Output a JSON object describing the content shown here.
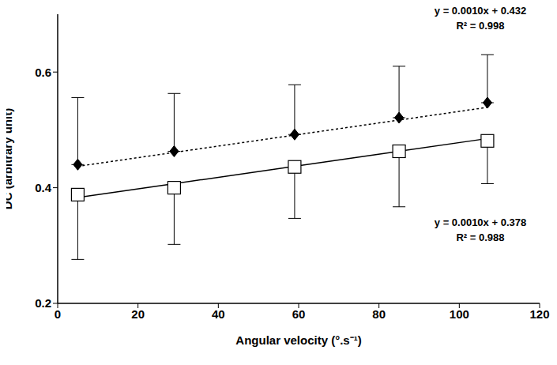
{
  "chart_data": {
    "type": "scatter",
    "x_label": "Angular velocity (°.s⁻¹)",
    "y_label": "DC (arbitrary unit)",
    "x": [
      5,
      29,
      59,
      85,
      107
    ],
    "xlim": [
      0,
      120
    ],
    "xticks": [
      0,
      20,
      40,
      60,
      80,
      100,
      120
    ],
    "ylim": [
      0.2,
      0.7
    ],
    "yticks": [
      0.2,
      0.4,
      0.6
    ],
    "grid": false,
    "series": [
      {
        "values": [
          0.44,
          0.463,
          0.492,
          0.521,
          0.547
        ],
        "error_upper": [
          0.116,
          0.1,
          0.086,
          0.089,
          0.083
        ],
        "color": "#000000",
        "marker": "diamond",
        "line_style": "dotted",
        "fit": {
          "slope": 0.001,
          "intercept": 0.432
        },
        "annotation": [
          "y = 0.0010x + 0.432",
          "R² = 0.998"
        ]
      },
      {
        "values": [
          0.388,
          0.4,
          0.436,
          0.463,
          0.481
        ],
        "error_lower": [
          0.112,
          0.098,
          0.089,
          0.096,
          0.074
        ],
        "color": "#000000",
        "marker": "square",
        "line_style": "solid",
        "fit": {
          "slope": 0.001,
          "intercept": 0.378
        },
        "annotation": [
          "y = 0.0010x + 0.378",
          "R² = 0.988"
        ]
      }
    ]
  }
}
